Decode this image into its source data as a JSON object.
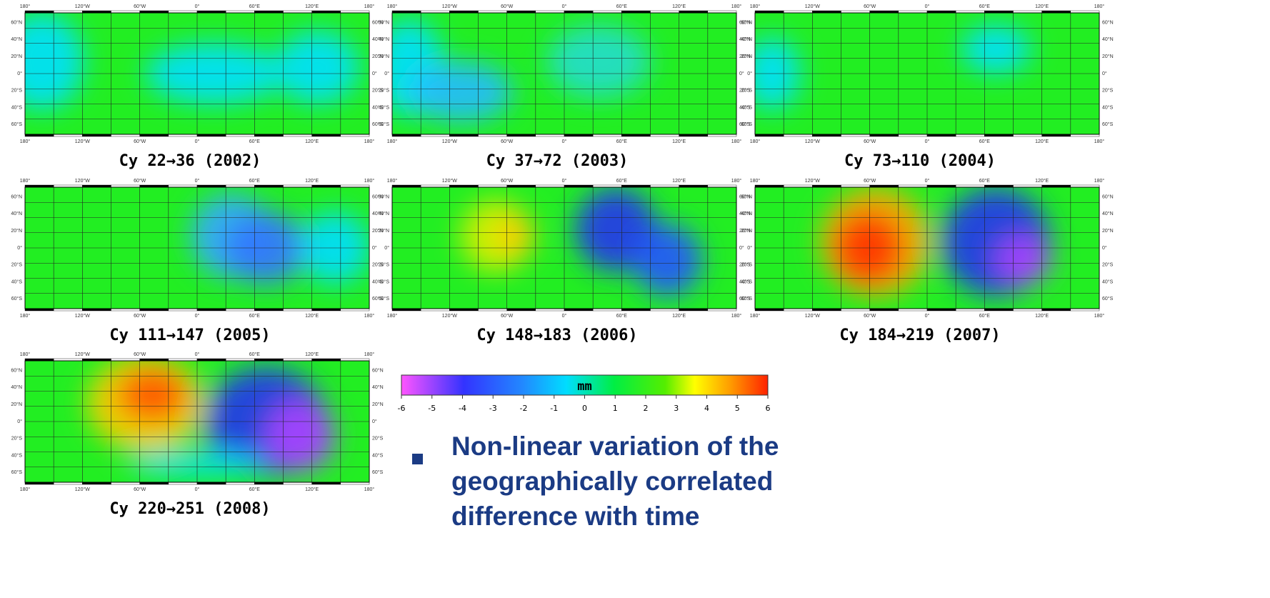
{
  "panels": [
    {
      "caption": "Cy 22→36 (2002)"
    },
    {
      "caption": "Cy 37→72 (2003)"
    },
    {
      "caption": "Cy 73→110 (2004)"
    },
    {
      "caption": "Cy 111→147 (2005)"
    },
    {
      "caption": "Cy 148→183 (2006)"
    },
    {
      "caption": "Cy 184→219 (2007)"
    },
    {
      "caption": "Cy 220→251 (2008)"
    }
  ],
  "lon_labels": [
    "180°",
    "120°W",
    "60°W",
    "0°",
    "60°E",
    "120°E",
    "180°"
  ],
  "lat_labels": [
    "60°N",
    "40°N",
    "20°N",
    "0°",
    "20°S",
    "40°S",
    "60°S"
  ],
  "colorbar": {
    "unit": "mm",
    "ticks": [
      -6,
      -5,
      -4,
      -3,
      -2,
      -1,
      0,
      1,
      2,
      3,
      4,
      5,
      6
    ]
  },
  "bullet": "Non-linear variation of the geographically correlated difference with time"
}
